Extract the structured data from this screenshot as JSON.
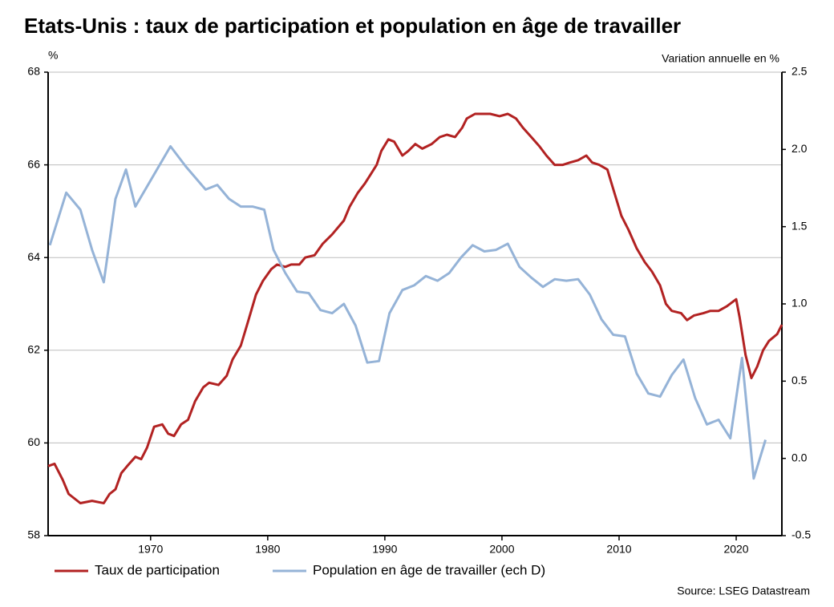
{
  "chart_data": {
    "type": "line",
    "title": "Etats-Unis : taux de participation et population en âge de travailler",
    "ylabel": "%",
    "y2label": "Variation annuelle en %",
    "source": "Source: LSEG Datastream",
    "xlim": [
      1961.25,
      2023.9
    ],
    "xticks": [
      1970,
      1980,
      1990,
      2000,
      2010,
      2020
    ],
    "ylim": [
      58,
      68
    ],
    "yticks": [
      58,
      60,
      62,
      64,
      66,
      68
    ],
    "y2lim": [
      -0.5,
      2.5
    ],
    "y2ticks": [
      {
        "value": -0.5,
        "label": "-0.5"
      },
      {
        "value": 0,
        "label": "0.0"
      },
      0.5,
      {
        "value": 1,
        "label": "1.0"
      },
      1.5,
      {
        "value": 2,
        "label": "2.0"
      },
      2.5
    ],
    "grid": true,
    "legend": "bottom",
    "series": [
      {
        "name": "Taux de participation",
        "color": "#b22222",
        "x": [
          1961.25,
          1961.8,
          1962.5,
          1963,
          1964,
          1965,
          1966,
          1966.5,
          1967,
          1967.5,
          1968,
          1968.7,
          1969.2,
          1969.7,
          1970.3,
          1971,
          1971.5,
          1972,
          1972.6,
          1973.2,
          1973.8,
          1974.5,
          1975,
          1975.8,
          1976.5,
          1977,
          1977.7,
          1978.3,
          1979,
          1979.6,
          1980.3,
          1980.8,
          1981.5,
          1982,
          1982.7,
          1983.2,
          1984,
          1984.7,
          1985.5,
          1986.5,
          1987,
          1987.7,
          1988.3,
          1988.8,
          1989.3,
          1989.7,
          1990.3,
          1990.8,
          1991.5,
          1992,
          1992.6,
          1993.2,
          1994,
          1994.7,
          1995.3,
          1996,
          1996.6,
          1997,
          1997.7,
          1998.3,
          1999,
          1999.8,
          2000.5,
          2001.2,
          2001.8,
          2002.5,
          2003.2,
          2003.8,
          2004.5,
          2005.2,
          2005.8,
          2006.5,
          2007.2,
          2007.7,
          2008.3,
          2009,
          2009.6,
          2010.2,
          2010.8,
          2011.5,
          2012.2,
          2012.8,
          2013.5,
          2014,
          2014.5,
          2015.3,
          2015.8,
          2016.4,
          2017.2,
          2017.8,
          2018.5,
          2019.2,
          2020,
          2020.3,
          2020.8,
          2021.3,
          2021.8,
          2022.3,
          2022.8,
          2023.5,
          2023.9
        ],
        "values": [
          59.5,
          59.55,
          59.2,
          58.9,
          58.7,
          58.75,
          58.7,
          58.9,
          59.0,
          59.35,
          59.5,
          59.7,
          59.65,
          59.9,
          60.35,
          60.4,
          60.2,
          60.15,
          60.4,
          60.5,
          60.9,
          61.2,
          61.3,
          61.25,
          61.45,
          61.8,
          62.1,
          62.6,
          63.2,
          63.5,
          63.75,
          63.85,
          63.8,
          63.85,
          63.85,
          64.0,
          64.05,
          64.3,
          64.5,
          64.8,
          65.1,
          65.4,
          65.6,
          65.8,
          66.0,
          66.3,
          66.55,
          66.5,
          66.2,
          66.3,
          66.45,
          66.35,
          66.45,
          66.6,
          66.65,
          66.6,
          66.8,
          67.0,
          67.1,
          67.1,
          67.1,
          67.05,
          67.1,
          67.0,
          66.8,
          66.6,
          66.4,
          66.2,
          66.0,
          66.0,
          66.05,
          66.1,
          66.2,
          66.05,
          66.0,
          65.9,
          65.4,
          64.9,
          64.6,
          64.2,
          63.9,
          63.7,
          63.4,
          63.0,
          62.85,
          62.8,
          62.65,
          62.75,
          62.8,
          62.85,
          62.85,
          62.95,
          63.1,
          62.7,
          61.9,
          61.4,
          61.65,
          62.0,
          62.2,
          62.35,
          62.55
        ]
      },
      {
        "name": "Population en âge de travailler (ech D)",
        "color": "#95b3d7",
        "axis": "y2",
        "x": [
          1961.4,
          1962.8,
          1964,
          1965,
          1966,
          1967,
          1967.9,
          1968.7,
          1971.7,
          1973,
          1974.7,
          1975.7,
          1976.7,
          1977.7,
          1978.7,
          1979.7,
          1980.5,
          1981.5,
          1982.5,
          1983.5,
          1984.5,
          1985.5,
          1986.5,
          1987.5,
          1988.5,
          1989.5,
          1990.4,
          1991.5,
          1992.5,
          1993.5,
          1994.5,
          1995.5,
          1996.5,
          1997.5,
          1998.5,
          1999.5,
          2000.5,
          2001.5,
          2002.5,
          2003.5,
          2004.5,
          2005.5,
          2006.5,
          2007.5,
          2008.5,
          2009.5,
          2010.5,
          2011.5,
          2012.5,
          2013.5,
          2014.5,
          2015.5,
          2016.5,
          2017.5,
          2018.5,
          2019.5,
          2020.5,
          2021.5,
          2022.5
        ],
        "values": [
          1.38,
          1.72,
          1.61,
          1.35,
          1.14,
          1.68,
          1.87,
          1.63,
          2.02,
          1.89,
          1.74,
          1.77,
          1.68,
          1.63,
          1.63,
          1.61,
          1.35,
          1.2,
          1.08,
          1.07,
          0.96,
          0.94,
          1.0,
          0.86,
          0.62,
          0.63,
          0.94,
          1.09,
          1.12,
          1.18,
          1.15,
          1.2,
          1.3,
          1.38,
          1.34,
          1.35,
          1.39,
          1.24,
          1.17,
          1.11,
          1.16,
          1.15,
          1.16,
          1.06,
          0.9,
          0.8,
          0.79,
          0.55,
          0.42,
          0.4,
          0.54,
          0.64,
          0.39,
          0.22,
          0.25,
          0.13,
          0.65,
          -0.13,
          0.12
        ]
      }
    ]
  }
}
